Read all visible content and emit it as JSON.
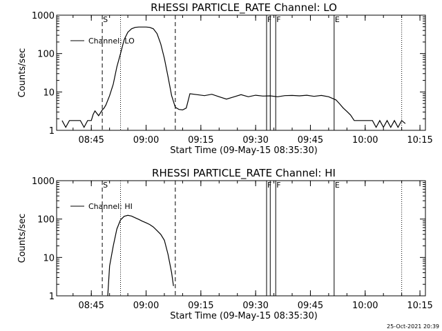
{
  "chart_data": [
    {
      "type": "line",
      "title": "RHESSI PARTICLE_RATE Channel: LO",
      "xlabel": "Start Time (09-May-15 08:35:30)",
      "ylabel": "Counts/sec",
      "yscale": "log",
      "ylim": [
        1,
        1000
      ],
      "xlim": [
        "08:35:30",
        "10:16:30"
      ],
      "x_ticks": [
        "08:45",
        "09:00",
        "09:15",
        "09:30",
        "09:45",
        "10:00",
        "10:15"
      ],
      "y_ticks": [
        "1",
        "10",
        "100",
        "1000"
      ],
      "legend": "top-left",
      "series": [
        {
          "name": "Channel: LO",
          "color": "#000000",
          "x": [
            "08:37:00",
            "08:38:00",
            "08:39:00",
            "08:40:00",
            "08:41:00",
            "08:42:00",
            "08:43:00",
            "08:44:00",
            "08:45:00",
            "08:45:30",
            "08:46:00",
            "08:47:00",
            "08:48:00",
            "08:48:30",
            "08:49:00",
            "08:50:00",
            "08:51:00",
            "08:52:00",
            "08:53:00",
            "08:54:00",
            "08:55:00",
            "08:56:00",
            "08:57:00",
            "08:58:00",
            "08:59:00",
            "09:00:00",
            "09:01:00",
            "09:02:00",
            "09:03:00",
            "09:04:00",
            "09:05:00",
            "09:06:00",
            "09:07:00",
            "09:08:00",
            "09:09:00",
            "09:10:00",
            "09:11:00",
            "09:12:00",
            "09:14:00",
            "09:16:00",
            "09:18:00",
            "09:20:00",
            "09:22:00",
            "09:24:00",
            "09:26:00",
            "09:28:00",
            "09:30:00",
            "09:32:00",
            "09:34:00",
            "09:36:00",
            "09:38:00",
            "09:40:00",
            "09:42:00",
            "09:44:00",
            "09:46:00",
            "09:48:00",
            "09:50:00",
            "09:52:00",
            "09:53:00",
            "09:54:00",
            "09:55:00",
            "09:56:00",
            "09:57:00",
            "09:58:00",
            "09:59:00",
            "10:00:00",
            "10:01:00",
            "10:02:00",
            "10:03:00",
            "10:04:00",
            "10:05:00",
            "10:06:00",
            "10:07:00",
            "10:08:00",
            "10:09:00",
            "10:10:00",
            "10:11:00"
          ],
          "values": [
            1.8,
            1.2,
            1.8,
            1.8,
            1.8,
            1.8,
            1.2,
            1.8,
            1.8,
            2.6,
            3.2,
            2.4,
            3.4,
            3.8,
            4.6,
            8,
            16,
            45,
            100,
            230,
            360,
            440,
            480,
            490,
            490,
            490,
            480,
            440,
            330,
            180,
            75,
            25,
            8,
            4,
            3.5,
            3.4,
            3.8,
            9,
            8.5,
            8,
            8.7,
            7.5,
            6.5,
            7.4,
            8.5,
            7.5,
            8.2,
            7.8,
            7.9,
            7.5,
            8,
            8.1,
            7.9,
            8.2,
            7.7,
            8.1,
            7.5,
            6.2,
            4.9,
            3.8,
            3.1,
            2.5,
            1.8,
            1.8,
            1.8,
            1.8,
            1.8,
            1.8,
            1.2,
            1.8,
            1.2,
            1.8,
            1.2,
            1.8,
            1.2,
            1.8,
            1.5
          ]
        }
      ],
      "markers": [
        {
          "label": "S",
          "x": "08:48:00",
          "style": "dashed"
        },
        {
          "label": "",
          "x": "08:53:00",
          "style": "dotted"
        },
        {
          "label": "",
          "x": "09:08:00",
          "style": "dashed"
        },
        {
          "label": "F",
          "x": "09:33:00",
          "style": "solid"
        },
        {
          "label": "",
          "x": "09:34:00",
          "style": "solid"
        },
        {
          "label": "F",
          "x": "09:35:30",
          "style": "solid"
        },
        {
          "label": "E",
          "x": "09:51:30",
          "style": "solid"
        },
        {
          "label": "",
          "x": "10:10:00",
          "style": "dotted"
        }
      ]
    },
    {
      "type": "line",
      "title": "RHESSI PARTICLE_RATE Channel: HI",
      "xlabel": "Start Time (09-May-15 08:35:30)",
      "ylabel": "Counts/sec",
      "yscale": "log",
      "ylim": [
        1,
        1000
      ],
      "xlim": [
        "08:35:30",
        "10:16:30"
      ],
      "x_ticks": [
        "08:45",
        "09:00",
        "09:15",
        "09:30",
        "09:45",
        "10:00",
        "10:15"
      ],
      "y_ticks": [
        "1",
        "10",
        "100",
        "1000"
      ],
      "legend": "top-left",
      "series": [
        {
          "name": "Channel: HI",
          "color": "#000000",
          "x": [
            "08:49:30",
            "08:50:00",
            "08:51:00",
            "08:52:00",
            "08:53:00",
            "08:54:00",
            "08:55:00",
            "08:56:00",
            "08:57:00",
            "08:58:00",
            "08:59:00",
            "09:00:00",
            "09:01:00",
            "09:02:00",
            "09:03:00",
            "09:04:00",
            "09:05:00",
            "09:06:00",
            "09:07:00",
            "09:07:30"
          ],
          "values": [
            1,
            6,
            20,
            55,
            95,
            118,
            125,
            120,
            108,
            98,
            88,
            80,
            72,
            62,
            50,
            40,
            28,
            12,
            4,
            1.8
          ]
        }
      ],
      "markers": [
        {
          "label": "S",
          "x": "08:48:00",
          "style": "dashed"
        },
        {
          "label": "",
          "x": "08:53:00",
          "style": "dotted"
        },
        {
          "label": "",
          "x": "09:08:00",
          "style": "dashed"
        },
        {
          "label": "F",
          "x": "09:33:00",
          "style": "solid"
        },
        {
          "label": "",
          "x": "09:34:00",
          "style": "solid"
        },
        {
          "label": "F",
          "x": "09:35:30",
          "style": "solid"
        },
        {
          "label": "E",
          "x": "09:51:30",
          "style": "solid"
        },
        {
          "label": "",
          "x": "10:10:00",
          "style": "dotted"
        }
      ]
    }
  ],
  "footer": {
    "timestamp": "25-Oct-2021 20:39"
  }
}
